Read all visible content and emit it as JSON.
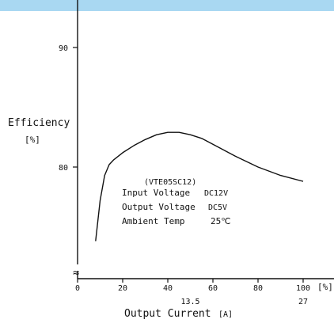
{
  "colors": {
    "header_band": "#a9d8f2",
    "ink": "#111111",
    "background": "#ffffff"
  },
  "chart_data": {
    "type": "line",
    "title": "",
    "xlabel": "Output Current",
    "xunit": "[A]",
    "xunit_percent": "[%]",
    "ylabel": "Efficiency",
    "yunit": "[%]",
    "axis_break_symbol": "≈",
    "xlim": [
      0,
      105
    ],
    "ylim": [
      72,
      95
    ],
    "grid": false,
    "x_ticks": [
      0,
      20,
      40,
      60,
      80,
      100
    ],
    "x_tick_labels": [
      "0",
      "20",
      "40",
      "60",
      "80",
      "100"
    ],
    "x_current_labels": [
      {
        "percent": 50,
        "label": "13.5"
      },
      {
        "percent": 100,
        "label": "27"
      }
    ],
    "y_ticks": [
      80,
      90
    ],
    "y_tick_labels": [
      "80",
      "90"
    ],
    "series": [
      {
        "x": [
          8,
          10,
          12,
          14,
          16,
          20,
          25,
          30,
          35,
          40,
          45,
          50,
          55,
          60,
          70,
          80,
          90,
          100
        ],
        "y": [
          73.8,
          77.2,
          79.3,
          80.2,
          80.6,
          81.2,
          81.8,
          82.3,
          82.7,
          82.9,
          82.9,
          82.7,
          82.4,
          81.9,
          80.9,
          80.0,
          79.3,
          78.8
        ]
      }
    ],
    "annotation": {
      "model": "(VTE05SC12)",
      "lines": [
        {
          "label": "Input Voltage",
          "value": "DC12V"
        },
        {
          "label": "Output Voltage",
          "value": "DC5V"
        },
        {
          "label": "Ambient Temp",
          "value": "25℃"
        }
      ]
    }
  }
}
